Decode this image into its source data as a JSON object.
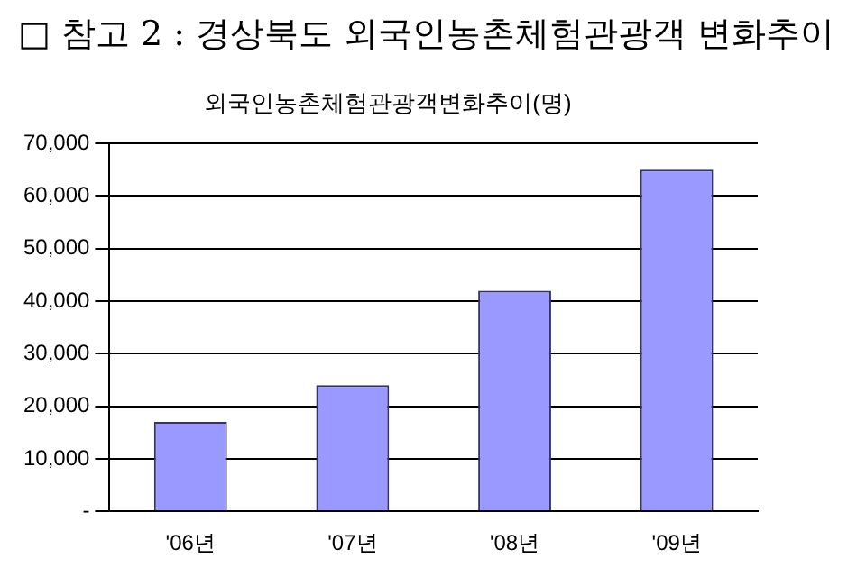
{
  "chart_data": {
    "type": "bar",
    "title": "□ 참고 2 : 경상북도 외국인농촌체험관광객 변화추이",
    "subtitle": "외국인농촌체험관광객변화추이(명)",
    "categories": [
      "'06년",
      "'07년",
      "'08년",
      "'09년"
    ],
    "values": [
      17000,
      24000,
      42000,
      65000
    ],
    "color": "#9999ff",
    "ylim": [
      0,
      70000
    ],
    "yticks": [
      {
        "value": 0,
        "label": "-"
      },
      {
        "value": 10000,
        "label": "10,000"
      },
      {
        "value": 20000,
        "label": "20,000"
      },
      {
        "value": 30000,
        "label": "30,000"
      },
      {
        "value": 40000,
        "label": "40,000"
      },
      {
        "value": 50000,
        "label": "50,000"
      },
      {
        "value": 60000,
        "label": "60,000"
      },
      {
        "value": 70000,
        "label": "70,000"
      }
    ],
    "grid": "y",
    "legend": false
  }
}
